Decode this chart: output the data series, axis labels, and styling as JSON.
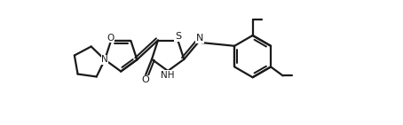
{
  "bg_color": "#ffffff",
  "line_color": "#1a1a1a",
  "line_width": 1.6,
  "figsize": [
    4.54,
    1.41
  ],
  "dpi": 100,
  "xlim": [
    0,
    10
  ],
  "ylim": [
    0,
    3.1
  ],
  "font_size_atom": 7.5,
  "font_size_small": 6.5
}
